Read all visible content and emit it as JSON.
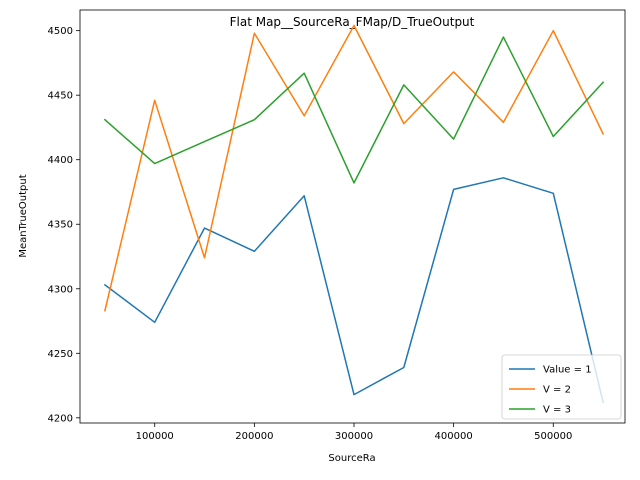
{
  "chart_data": {
    "type": "line",
    "title": "Flat Map__SourceRa_FMap/D_TrueOutput",
    "xlabel": "SourceRa",
    "ylabel": "MeanTrueOutput",
    "xlim": [
      25000,
      572000
    ],
    "ylim": [
      4196,
      4516
    ],
    "x_ticks": [
      100000,
      200000,
      300000,
      400000,
      500000
    ],
    "x_tick_labels": [
      "100000",
      "200000",
      "300000",
      "400000",
      "500000"
    ],
    "y_ticks": [
      4200,
      4250,
      4300,
      4350,
      4400,
      4450,
      4500
    ],
    "y_tick_labels": [
      "4200",
      "4250",
      "4300",
      "4350",
      "4400",
      "4450",
      "4500"
    ],
    "grid": false,
    "legend_position": "lower right",
    "x": [
      50000,
      100000,
      150000,
      200000,
      250000,
      300000,
      350000,
      400000,
      450000,
      500000,
      550000
    ],
    "series": [
      {
        "name": "Value = 1",
        "color": "#1f77b4",
        "values": [
          4303,
          4274,
          4347,
          4329,
          4372,
          4218,
          4239,
          4377,
          4386,
          4374,
          4212
        ]
      },
      {
        "name": "V = 2",
        "color": "#ff7f0e",
        "values": [
          4283,
          4446,
          4324,
          4498,
          4434,
          4504,
          4428,
          4468,
          4429,
          4500,
          4420
        ]
      },
      {
        "name": "V = 3",
        "color": "#2ca02c",
        "values": [
          4431,
          4397,
          4414,
          4431,
          4467,
          4382,
          4458,
          4416,
          4495,
          4418,
          4460
        ]
      }
    ]
  }
}
